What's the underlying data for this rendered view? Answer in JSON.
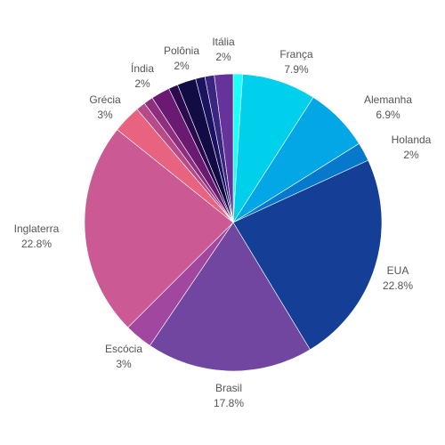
{
  "chart_data": {
    "type": "pie",
    "title": "",
    "start_angle_deg": 0,
    "direction": "clockwise",
    "slices": [
      {
        "label": "",
        "value": 1,
        "color": "#1affff",
        "percent_label": ""
      },
      {
        "label": "França",
        "value": 7.9,
        "color": "#00d0ec",
        "percent_label": "7.9%"
      },
      {
        "label": "Alemanha",
        "value": 6.9,
        "color": "#03a7e6",
        "percent_label": "6.9%"
      },
      {
        "label": "Holanda",
        "value": 2,
        "color": "#0679cd",
        "percent_label": "2%"
      },
      {
        "label": "EUA",
        "value": 22.8,
        "color": "#153f96",
        "percent_label": "22.8%"
      },
      {
        "label": "Brasil",
        "value": 17.8,
        "color": "#7146a1",
        "percent_label": "17.8%"
      },
      {
        "label": "Escócia",
        "value": 3,
        "color": "#a1479f",
        "percent_label": "3%"
      },
      {
        "label": "Inglaterra",
        "value": 22.8,
        "color": "#cb5993",
        "percent_label": "22.8%"
      },
      {
        "label": "Grécia",
        "value": 3,
        "color": "#e86380",
        "percent_label": "3%"
      },
      {
        "label": "",
        "value": 1,
        "color": "#b94a8a",
        "percent_label": ""
      },
      {
        "label": "",
        "value": 1,
        "color": "#8d2e7e",
        "percent_label": ""
      },
      {
        "label": "Índia",
        "value": 2,
        "color": "#6b1a72",
        "percent_label": "2%"
      },
      {
        "label": "",
        "value": 1,
        "color": "#2c0a4f",
        "percent_label": ""
      },
      {
        "label": "Polônia",
        "value": 2,
        "color": "#120c45",
        "percent_label": "2%"
      },
      {
        "label": "",
        "value": 1,
        "color": "#1b1361",
        "percent_label": ""
      },
      {
        "label": "",
        "value": 1,
        "color": "#3a2580",
        "percent_label": ""
      },
      {
        "label": "Itália",
        "value": 2,
        "color": "#653399",
        "percent_label": "2%"
      }
    ]
  }
}
